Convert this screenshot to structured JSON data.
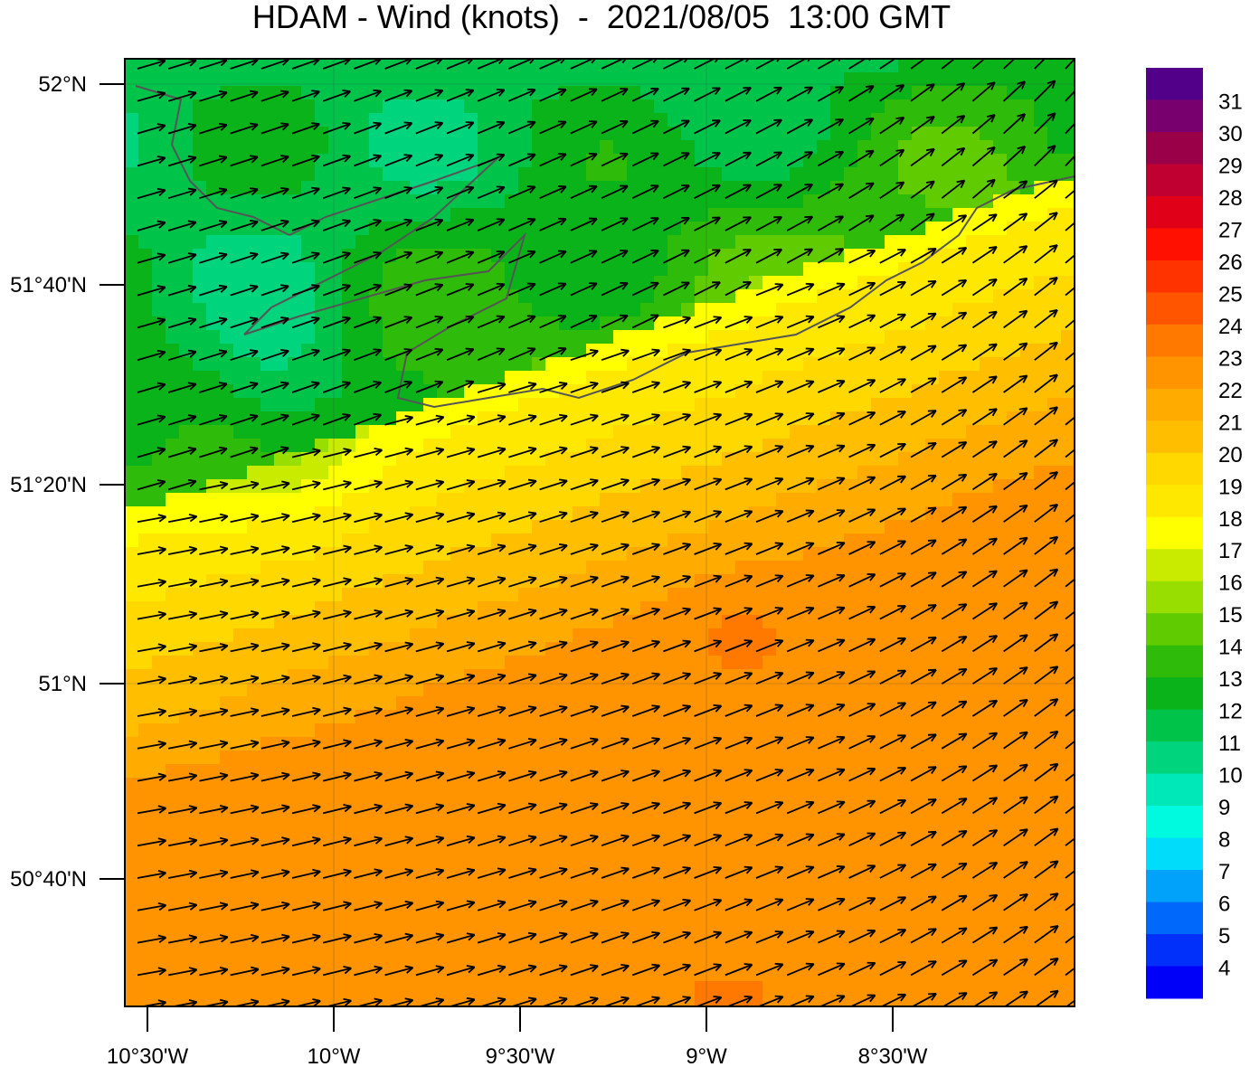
{
  "title": "HDAM - Wind (knots)  -  2021/08/05  13:00 GMT",
  "map": {
    "lat_ticks": [
      "52°N",
      "51°40'N",
      "51°20'N",
      "51°N",
      "50°40'N"
    ],
    "lon_ticks": [
      "10°30'W",
      "10°W",
      "9°30'W",
      "9°W",
      "8°30'W"
    ],
    "field": "wind speed",
    "vectors": "wind arrows"
  },
  "colorbar": {
    "labels": [
      "31",
      "30",
      "29",
      "28",
      "27",
      "26",
      "25",
      "24",
      "23",
      "22",
      "21",
      "20",
      "19",
      "18",
      "17",
      "16",
      "15",
      "14",
      "13",
      "12",
      "11",
      "10",
      "9",
      "8",
      "7",
      "6",
      "5",
      "4"
    ],
    "colors": [
      "#520089",
      "#78006e",
      "#990048",
      "#bf0030",
      "#e00018",
      "#ff1000",
      "#ff3300",
      "#ff5500",
      "#ff7800",
      "#ff9400",
      "#ffab00",
      "#ffbf00",
      "#ffd800",
      "#ffe800",
      "#ffff00",
      "#c8eb00",
      "#98de00",
      "#60cc00",
      "#2fbb0a",
      "#0ab31a",
      "#00c44a",
      "#00d57e",
      "#00e8b8",
      "#00fae0",
      "#00dcfa",
      "#00a2fa",
      "#0068fa",
      "#0030fa",
      "#0000fa"
    ]
  }
}
